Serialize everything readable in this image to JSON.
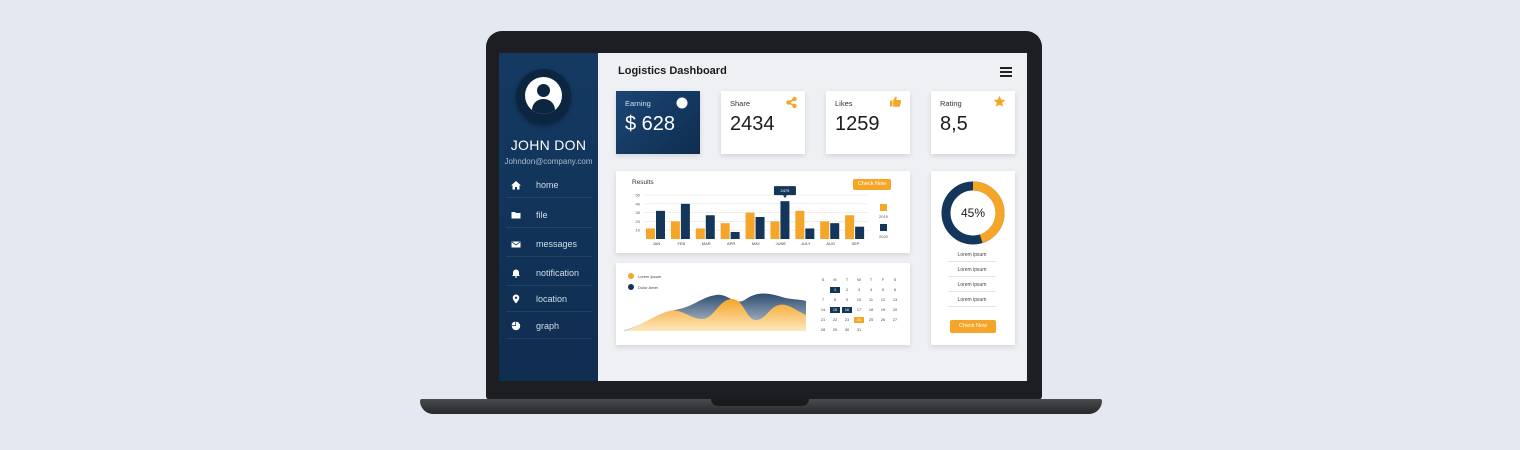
{
  "header": {
    "title": "Logistics Dashboard"
  },
  "user": {
    "name": "JOHN DON",
    "email": "Johndon@company.com"
  },
  "sidebar": {
    "items": [
      {
        "label": "home",
        "icon": "home-icon"
      },
      {
        "label": "file",
        "icon": "folder-icon"
      },
      {
        "label": "messages",
        "icon": "envelope-icon"
      },
      {
        "label": "notification",
        "icon": "bell-icon"
      },
      {
        "label": "location",
        "icon": "location-pin-icon"
      },
      {
        "label": "graph",
        "icon": "pie-chart-icon"
      }
    ]
  },
  "stats": [
    {
      "label": "Earning",
      "value": "$ 628",
      "icon": "circle-icon"
    },
    {
      "label": "Share",
      "value": "2434",
      "icon": "share-icon"
    },
    {
      "label": "Likes",
      "value": "1259",
      "icon": "thumbs-up-icon"
    },
    {
      "label": "Rating",
      "value": "8,5",
      "icon": "star-icon"
    }
  ],
  "colors": {
    "accent": "#f5a527",
    "navy": "#14365a",
    "sidebar": "#123761"
  },
  "chart_data": [
    {
      "type": "bar",
      "title": "Results",
      "categories": [
        "JAN",
        "FEB",
        "MAR",
        "APR",
        "MAY",
        "JUNE",
        "JULY",
        "AUG",
        "SEP"
      ],
      "ylim": [
        0,
        50
      ],
      "yticks": [
        "50",
        "40",
        "30",
        "20",
        "10"
      ],
      "tooltip": {
        "label": "2479",
        "category": "JUNE"
      },
      "button": "Check Now",
      "series": [
        {
          "name": "2019",
          "color": "#f5a527",
          "values": [
            12,
            20,
            12,
            18,
            30,
            20,
            32,
            20,
            27
          ]
        },
        {
          "name": "2020",
          "color": "#14365a",
          "values": [
            32,
            40,
            27,
            8,
            25,
            43,
            12,
            18,
            14
          ]
        }
      ]
    },
    {
      "type": "area",
      "legend": [
        {
          "name": "Lorem Ipsum",
          "color": "#f5a527"
        },
        {
          "name": "Dolor Amet",
          "color": "#14365a"
        }
      ]
    },
    {
      "type": "pie",
      "values": [
        45,
        55
      ],
      "label": "45%"
    }
  ],
  "calendar": {
    "weekdays": [
      "S",
      "M",
      "T",
      "W",
      "T",
      "F",
      "S"
    ],
    "days": [
      "",
      "1",
      "2",
      "3",
      "4",
      "5",
      "6",
      "7",
      "8",
      "9",
      "10",
      "11",
      "12",
      "13",
      "14",
      "15",
      "16",
      "17",
      "18",
      "19",
      "20",
      "21",
      "22",
      "23",
      "24",
      "25",
      "26",
      "27",
      "28",
      "29",
      "30",
      "31"
    ],
    "highlight": {
      "navy": [
        "1",
        "15",
        "16"
      ],
      "orange": [
        "24"
      ]
    }
  },
  "rating_panel": {
    "items": [
      "Lorem ipsum",
      "Lorem ipsum",
      "Lorem ipsum",
      "Lorem ipsum"
    ],
    "button": "Check Now"
  }
}
